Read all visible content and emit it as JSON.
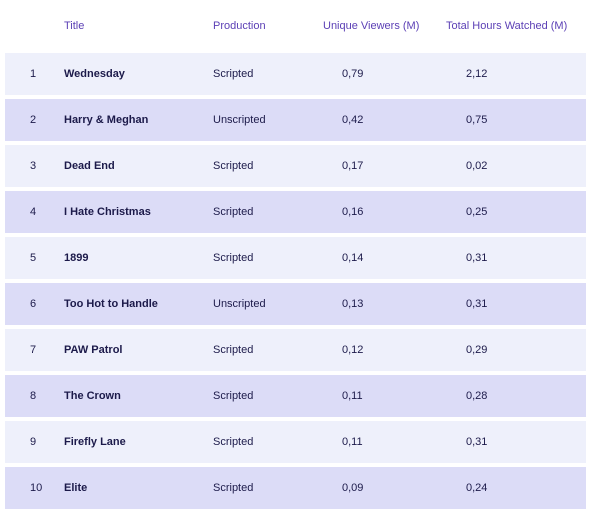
{
  "chart_data": {
    "type": "table",
    "columns": [
      "",
      "Title",
      "Production",
      "Unique Viewers (M)",
      "Total Hours Watched (M)"
    ],
    "rows": [
      {
        "rank": "1",
        "title": "Wednesday",
        "production": "Scripted",
        "unique_viewers": "0,79",
        "hours_watched": "2,12"
      },
      {
        "rank": "2",
        "title": "Harry & Meghan",
        "production": "Unscripted",
        "unique_viewers": "0,42",
        "hours_watched": "0,75"
      },
      {
        "rank": "3",
        "title": "Dead End",
        "production": "Scripted",
        "unique_viewers": "0,17",
        "hours_watched": "0,02"
      },
      {
        "rank": "4",
        "title": "I Hate Christmas",
        "production": "Scripted",
        "unique_viewers": "0,16",
        "hours_watched": "0,25"
      },
      {
        "rank": "5",
        "title": "1899",
        "production": "Scripted",
        "unique_viewers": "0,14",
        "hours_watched": "0,31"
      },
      {
        "rank": "6",
        "title": "Too Hot to Handle",
        "production": "Unscripted",
        "unique_viewers": "0,13",
        "hours_watched": "0,31"
      },
      {
        "rank": "7",
        "title": "PAW Patrol",
        "production": "Scripted",
        "unique_viewers": "0,12",
        "hours_watched": "0,29"
      },
      {
        "rank": "8",
        "title": "The Crown",
        "production": "Scripted",
        "unique_viewers": "0,11",
        "hours_watched": "0,28"
      },
      {
        "rank": "9",
        "title": "Firefly Lane",
        "production": "Scripted",
        "unique_viewers": "0,11",
        "hours_watched": "0,31"
      },
      {
        "rank": "10",
        "title": "Elite",
        "production": "Scripted",
        "unique_viewers": "0,09",
        "hours_watched": "0,24"
      }
    ],
    "header_color": "#5b3fb5",
    "row_colors": [
      "#eef0fb",
      "#dcdcf7"
    ],
    "text_color": "#1c1a4a"
  }
}
